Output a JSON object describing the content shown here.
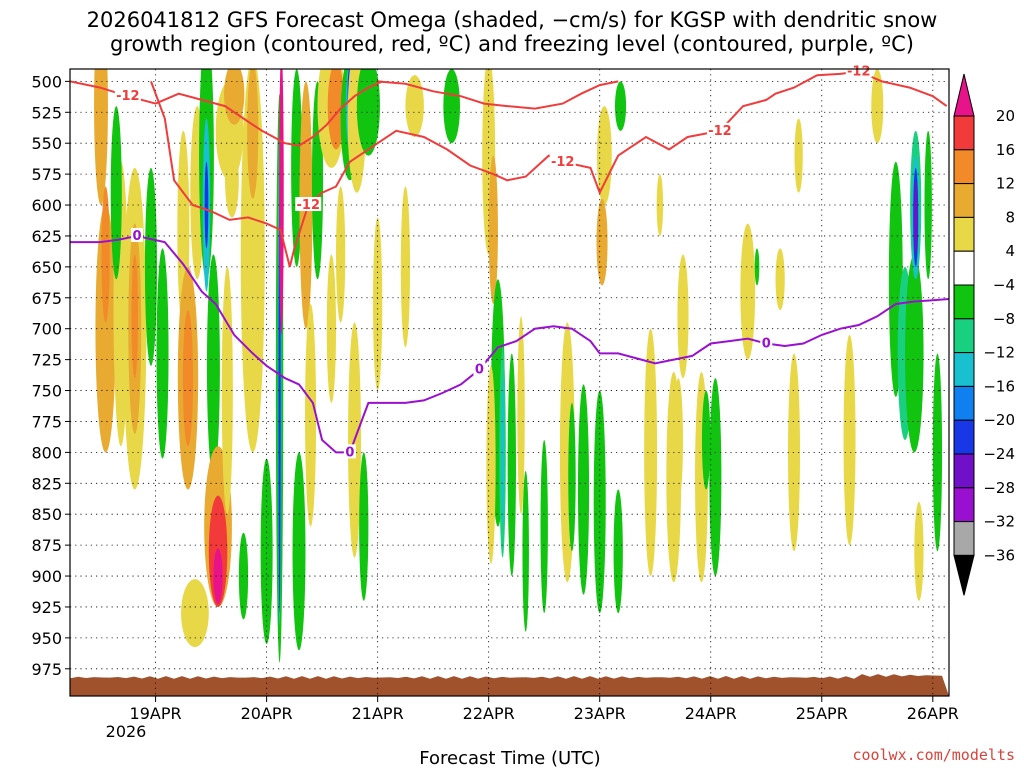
{
  "chart_data": {
    "type": "heatmap",
    "title_line1": "2026041812 GFS Forecast Omega (shaded, −cm/s) for KGSP with dendritic snow",
    "title_line2": "growth region (contoured, red, ºC) and freezing level (contoured, purple, ºC)",
    "xlabel": "Forecast Time (UTC)",
    "credit": "coolwx.com/modelts",
    "year_label": "2026",
    "x_range_hours": [
      -6.5,
      183.5
    ],
    "x_ticks": [
      {
        "label": "19APR",
        "hours": 12
      },
      {
        "label": "20APR",
        "hours": 36
      },
      {
        "label": "21APR",
        "hours": 60
      },
      {
        "label": "22APR",
        "hours": 84
      },
      {
        "label": "23APR",
        "hours": 108
      },
      {
        "label": "24APR",
        "hours": 132
      },
      {
        "label": "25APR",
        "hours": 156
      },
      {
        "label": "26APR",
        "hours": 180
      }
    ],
    "y_range_hpa": [
      490,
      997
    ],
    "y_ticks": [
      "500",
      "525",
      "550",
      "575",
      "600",
      "625",
      "650",
      "675",
      "700",
      "725",
      "750",
      "775",
      "800",
      "825",
      "850",
      "875",
      "900",
      "925",
      "950",
      "975"
    ],
    "ground_level_hpa": 982,
    "colorbar": {
      "labels": [
        "20",
        "16",
        "12",
        "8",
        "4",
        "−4",
        "−8",
        "−12",
        "−16",
        "−20",
        "−24",
        "−28",
        "−32",
        "−36"
      ],
      "colors": [
        "#e8138a",
        "#f23a3a",
        "#f28a2a",
        "#e8aa30",
        "#e8d848",
        "#ffffff",
        "#10c410",
        "#18d080",
        "#18c0d0",
        "#1080f0",
        "#1838e8",
        "#7010c8",
        "#9a10d0",
        "#a8a8a8",
        "#000000"
      ]
    },
    "omega_blobs": [
      {
        "hours": 0.2,
        "p": 520,
        "w": 1.5,
        "h": 160,
        "level": 8
      },
      {
        "hours": 1.2,
        "p": 700,
        "w": 2.2,
        "h": 200,
        "level": 8
      },
      {
        "hours": 1.2,
        "p": 640,
        "w": 0.9,
        "h": 110,
        "level": 12
      },
      {
        "hours": 4.5,
        "p": 680,
        "w": 1.6,
        "h": 230,
        "level": 4
      },
      {
        "hours": 3.5,
        "p": 590,
        "w": 1.2,
        "h": 140,
        "level": -8
      },
      {
        "hours": 7.5,
        "p": 700,
        "w": 2.5,
        "h": 260,
        "level": 4
      },
      {
        "hours": 7.5,
        "p": 700,
        "w": 1.4,
        "h": 170,
        "level": 8
      },
      {
        "hours": 7.5,
        "p": 690,
        "w": 0.7,
        "h": 100,
        "level": 12
      },
      {
        "hours": 11.0,
        "p": 650,
        "w": 1.3,
        "h": 160,
        "level": -8
      },
      {
        "hours": 13.5,
        "p": 720,
        "w": 1.3,
        "h": 170,
        "level": -8
      },
      {
        "hours": 18.0,
        "p": 620,
        "w": 1.3,
        "h": 160,
        "level": 4
      },
      {
        "hours": 19.0,
        "p": 740,
        "w": 2.2,
        "h": 180,
        "level": 8
      },
      {
        "hours": 19.0,
        "p": 740,
        "w": 1.1,
        "h": 110,
        "level": 12
      },
      {
        "hours": 21.0,
        "p": 590,
        "w": 1.5,
        "h": 140,
        "level": 4
      },
      {
        "hours": 20.5,
        "p": 930,
        "w": 3.0,
        "h": 55,
        "level": 4
      },
      {
        "hours": 23.0,
        "p": 560,
        "w": 1.6,
        "h": 200,
        "level": -8
      },
      {
        "hours": 23.0,
        "p": 600,
        "w": 0.8,
        "h": 140,
        "level": -16
      },
      {
        "hours": 23.0,
        "p": 600,
        "w": 0.4,
        "h": 70,
        "level": -24
      },
      {
        "hours": 24.5,
        "p": 730,
        "w": 1.4,
        "h": 180,
        "level": -8
      },
      {
        "hours": 25.5,
        "p": 860,
        "w": 3.0,
        "h": 130,
        "level": 8
      },
      {
        "hours": 25.5,
        "p": 880,
        "w": 2.0,
        "h": 90,
        "level": 16
      },
      {
        "hours": 25.5,
        "p": 900,
        "w": 1.0,
        "h": 45,
        "level": 20
      },
      {
        "hours": 28.0,
        "p": 540,
        "w": 3.0,
        "h": 80,
        "level": 4
      },
      {
        "hours": 29.0,
        "p": 510,
        "w": 2.2,
        "h": 50,
        "level": 8
      },
      {
        "hours": 28.5,
        "p": 580,
        "w": 1.5,
        "h": 60,
        "level": 4
      },
      {
        "hours": 27.5,
        "p": 750,
        "w": 1.2,
        "h": 200,
        "level": 4
      },
      {
        "hours": 31.0,
        "p": 900,
        "w": 1.0,
        "h": 70,
        "level": -8
      },
      {
        "hours": 33.0,
        "p": 640,
        "w": 2.6,
        "h": 320,
        "level": 4
      },
      {
        "hours": 33.0,
        "p": 540,
        "w": 1.2,
        "h": 110,
        "level": 8
      },
      {
        "hours": 36.0,
        "p": 880,
        "w": 1.3,
        "h": 150,
        "level": -8
      },
      {
        "hours": 38.8,
        "p": 740,
        "w": 0.8,
        "h": 460,
        "level": -8
      },
      {
        "hours": 38.8,
        "p": 740,
        "w": 0.4,
        "h": 400,
        "level": -16
      },
      {
        "hours": 38.8,
        "p": 760,
        "w": 0.25,
        "h": 340,
        "level": -24
      },
      {
        "hours": 39.2,
        "p": 590,
        "w": 0.5,
        "h": 230,
        "level": 20
      },
      {
        "hours": 42.5,
        "p": 570,
        "w": 1.2,
        "h": 160,
        "level": -8
      },
      {
        "hours": 44.5,
        "p": 600,
        "w": 1.4,
        "h": 200,
        "level": 8
      },
      {
        "hours": 43.0,
        "p": 880,
        "w": 1.4,
        "h": 160,
        "level": -8
      },
      {
        "hours": 45.5,
        "p": 770,
        "w": 1.2,
        "h": 180,
        "level": 4
      },
      {
        "hours": 47.0,
        "p": 580,
        "w": 1.2,
        "h": 160,
        "level": -8
      },
      {
        "hours": 50.0,
        "p": 520,
        "w": 3.0,
        "h": 100,
        "level": 4
      },
      {
        "hours": 51.0,
        "p": 520,
        "w": 1.8,
        "h": 70,
        "level": 12
      },
      {
        "hours": 50.0,
        "p": 700,
        "w": 1.0,
        "h": 120,
        "level": 4
      },
      {
        "hours": 54.0,
        "p": 530,
        "w": 2.0,
        "h": 100,
        "level": -8
      },
      {
        "hours": 54.0,
        "p": 520,
        "w": 0.9,
        "h": 70,
        "level": -16
      },
      {
        "hours": 54.0,
        "p": 510,
        "w": 0.5,
        "h": 45,
        "level": -24
      },
      {
        "hours": 55.5,
        "p": 530,
        "w": 2.0,
        "h": 120,
        "level": 4
      },
      {
        "hours": 58.0,
        "p": 520,
        "w": 2.5,
        "h": 80,
        "level": -8
      },
      {
        "hours": 52.0,
        "p": 640,
        "w": 1.0,
        "h": 110,
        "level": 4
      },
      {
        "hours": 55.0,
        "p": 790,
        "w": 1.4,
        "h": 190,
        "level": 4
      },
      {
        "hours": 57.0,
        "p": 860,
        "w": 1.0,
        "h": 120,
        "level": -8
      },
      {
        "hours": 60.0,
        "p": 680,
        "w": 1.0,
        "h": 140,
        "level": 4
      },
      {
        "hours": 66.0,
        "p": 650,
        "w": 1.0,
        "h": 130,
        "level": 4
      },
      {
        "hours": 68.0,
        "p": 520,
        "w": 2.0,
        "h": 50,
        "level": 4
      },
      {
        "hours": 76.0,
        "p": 520,
        "w": 1.8,
        "h": 60,
        "level": -8
      },
      {
        "hours": 84.0,
        "p": 560,
        "w": 1.4,
        "h": 160,
        "level": 4
      },
      {
        "hours": 85.0,
        "p": 620,
        "w": 1.0,
        "h": 120,
        "level": 8
      },
      {
        "hours": 86.0,
        "p": 760,
        "w": 1.5,
        "h": 200,
        "level": -8
      },
      {
        "hours": 87.0,
        "p": 800,
        "w": 0.7,
        "h": 170,
        "level": -12
      },
      {
        "hours": 87.0,
        "p": 800,
        "w": 0.3,
        "h": 120,
        "level": -16
      },
      {
        "hours": 84.5,
        "p": 810,
        "w": 1.0,
        "h": 160,
        "level": 4
      },
      {
        "hours": 89.0,
        "p": 810,
        "w": 0.9,
        "h": 180,
        "level": -8
      },
      {
        "hours": 91.0,
        "p": 770,
        "w": 0.8,
        "h": 160,
        "level": 4
      },
      {
        "hours": 92.0,
        "p": 880,
        "w": 0.7,
        "h": 130,
        "level": -8
      },
      {
        "hours": 96.0,
        "p": 860,
        "w": 0.8,
        "h": 140,
        "level": -8
      },
      {
        "hours": 101.0,
        "p": 800,
        "w": 1.6,
        "h": 210,
        "level": 4
      },
      {
        "hours": 102.0,
        "p": 820,
        "w": 0.8,
        "h": 120,
        "level": -8
      },
      {
        "hours": 104.5,
        "p": 830,
        "w": 1.2,
        "h": 170,
        "level": -8
      },
      {
        "hours": 108.0,
        "p": 840,
        "w": 1.3,
        "h": 180,
        "level": -8
      },
      {
        "hours": 109.0,
        "p": 560,
        "w": 1.6,
        "h": 80,
        "level": 4
      },
      {
        "hours": 108.5,
        "p": 630,
        "w": 1.2,
        "h": 70,
        "level": 8
      },
      {
        "hours": 112.0,
        "p": 880,
        "w": 1.0,
        "h": 100,
        "level": -8
      },
      {
        "hours": 112.5,
        "p": 520,
        "w": 1.2,
        "h": 40,
        "level": -8
      },
      {
        "hours": 119.0,
        "p": 800,
        "w": 1.4,
        "h": 200,
        "level": 4
      },
      {
        "hours": 121.0,
        "p": 600,
        "w": 0.7,
        "h": 50,
        "level": 4
      },
      {
        "hours": 124.0,
        "p": 820,
        "w": 1.6,
        "h": 170,
        "level": 4
      },
      {
        "hours": 125.0,
        "p": 790,
        "w": 1.0,
        "h": 100,
        "level": 4
      },
      {
        "hours": 126.0,
        "p": 690,
        "w": 1.2,
        "h": 100,
        "level": 4
      },
      {
        "hours": 130.0,
        "p": 820,
        "w": 1.4,
        "h": 170,
        "level": 4
      },
      {
        "hours": 131.0,
        "p": 790,
        "w": 0.9,
        "h": 80,
        "level": -8
      },
      {
        "hours": 133.0,
        "p": 820,
        "w": 1.3,
        "h": 160,
        "level": -8
      },
      {
        "hours": 140.0,
        "p": 670,
        "w": 1.6,
        "h": 110,
        "level": 4
      },
      {
        "hours": 142.0,
        "p": 650,
        "w": 0.5,
        "h": 30,
        "level": -8
      },
      {
        "hours": 147.0,
        "p": 660,
        "w": 1.0,
        "h": 50,
        "level": 4
      },
      {
        "hours": 150.0,
        "p": 800,
        "w": 1.3,
        "h": 160,
        "level": 4
      },
      {
        "hours": 151.0,
        "p": 560,
        "w": 0.9,
        "h": 60,
        "level": 4
      },
      {
        "hours": 162.0,
        "p": 790,
        "w": 1.3,
        "h": 170,
        "level": 4
      },
      {
        "hours": 168.0,
        "p": 520,
        "w": 1.3,
        "h": 60,
        "level": 4
      },
      {
        "hours": 172.0,
        "p": 660,
        "w": 1.5,
        "h": 190,
        "level": -8
      },
      {
        "hours": 174.0,
        "p": 720,
        "w": 1.6,
        "h": 140,
        "level": -12
      },
      {
        "hours": 176.0,
        "p": 720,
        "w": 2.0,
        "h": 160,
        "level": -8
      },
      {
        "hours": 176.3,
        "p": 600,
        "w": 1.2,
        "h": 120,
        "level": -12
      },
      {
        "hours": 176.3,
        "p": 610,
        "w": 0.8,
        "h": 100,
        "level": -16
      },
      {
        "hours": 176.3,
        "p": 610,
        "w": 0.55,
        "h": 80,
        "level": -24
      },
      {
        "hours": 176.3,
        "p": 610,
        "w": 0.4,
        "h": 60,
        "level": -28
      },
      {
        "hours": 179.0,
        "p": 600,
        "w": 0.8,
        "h": 120,
        "level": -8
      },
      {
        "hours": 181.0,
        "p": 800,
        "w": 1.0,
        "h": 160,
        "level": -8
      },
      {
        "hours": 177.0,
        "p": 880,
        "w": 1.0,
        "h": 80,
        "level": 4
      }
    ],
    "snow_growth_contours": [
      {
        "label": "-12",
        "points": [
          [
            -6.5,
            500
          ],
          [
            0,
            505
          ],
          [
            6,
            512
          ],
          [
            12,
            518
          ],
          [
            17,
            510
          ],
          [
            22,
            515
          ],
          [
            27,
            520
          ],
          [
            31,
            530
          ],
          [
            35,
            540
          ],
          [
            40,
            550
          ],
          [
            43,
            552
          ],
          [
            46,
            545
          ],
          [
            49,
            535
          ],
          [
            52,
            522
          ],
          [
            55,
            512
          ],
          [
            58,
            505
          ],
          [
            61,
            500
          ]
        ]
      },
      {
        "label": "-12",
        "points": [
          [
            11,
            500
          ],
          [
            14,
            530
          ],
          [
            16,
            580
          ],
          [
            20,
            600
          ],
          [
            24,
            605
          ],
          [
            28,
            612
          ],
          [
            32,
            610
          ],
          [
            36,
            615
          ],
          [
            39,
            620
          ],
          [
            41,
            650
          ],
          [
            42,
            635
          ],
          [
            45,
            600
          ],
          [
            48,
            590
          ],
          [
            51,
            585
          ],
          [
            54,
            565
          ],
          [
            58,
            555
          ],
          [
            64,
            540
          ],
          [
            70,
            545
          ],
          [
            75,
            555
          ],
          [
            80,
            568
          ],
          [
            85,
            575
          ],
          [
            88,
            580
          ],
          [
            92,
            577
          ],
          [
            97,
            560
          ],
          [
            100,
            565
          ],
          [
            106,
            570
          ],
          [
            108,
            590
          ],
          [
            112,
            560
          ],
          [
            118,
            545
          ],
          [
            123,
            555
          ],
          [
            127,
            545
          ],
          [
            134,
            540
          ],
          [
            139,
            520
          ],
          [
            144,
            515
          ],
          [
            146,
            510
          ],
          [
            150,
            505
          ],
          [
            155,
            495
          ],
          [
            160,
            494
          ],
          [
            164,
            492
          ],
          [
            169,
            500
          ],
          [
            175,
            505
          ],
          [
            180,
            512
          ],
          [
            183,
            520
          ]
        ]
      },
      {
        "label": "",
        "points": [
          [
            60,
            500
          ],
          [
            66,
            502
          ],
          [
            72,
            508
          ],
          [
            78,
            512
          ],
          [
            83,
            518
          ],
          [
            88,
            520
          ],
          [
            94,
            522
          ],
          [
            100,
            518
          ],
          [
            104,
            510
          ],
          [
            108,
            503
          ],
          [
            112,
            500
          ]
        ]
      }
    ],
    "freezing_level_contour": {
      "label": "0",
      "points": [
        [
          -6.5,
          630
        ],
        [
          0,
          630
        ],
        [
          4,
          628
        ],
        [
          8,
          625
        ],
        [
          14,
          630
        ],
        [
          18,
          648
        ],
        [
          22,
          670
        ],
        [
          25,
          680
        ],
        [
          29,
          705
        ],
        [
          33,
          720
        ],
        [
          36,
          730
        ],
        [
          40,
          740
        ],
        [
          43,
          745
        ],
        [
          46,
          760
        ],
        [
          48,
          790
        ],
        [
          51,
          800
        ],
        [
          54,
          800
        ],
        [
          56,
          780
        ],
        [
          58,
          760
        ],
        [
          62,
          760
        ],
        [
          66,
          760
        ],
        [
          70,
          758
        ],
        [
          74,
          752
        ],
        [
          78,
          745
        ],
        [
          82,
          733
        ],
        [
          86,
          715
        ],
        [
          90,
          710
        ],
        [
          94,
          700
        ],
        [
          98,
          698
        ],
        [
          102,
          700
        ],
        [
          106,
          710
        ],
        [
          108,
          720
        ],
        [
          112,
          720
        ],
        [
          116,
          724
        ],
        [
          120,
          728
        ],
        [
          124,
          725
        ],
        [
          128,
          722
        ],
        [
          132,
          712
        ],
        [
          136,
          710
        ],
        [
          140,
          708
        ],
        [
          144,
          712
        ],
        [
          148,
          714
        ],
        [
          152,
          712
        ],
        [
          156,
          705
        ],
        [
          160,
          700
        ],
        [
          164,
          697
        ],
        [
          168,
          690
        ],
        [
          172,
          680
        ],
        [
          176,
          678
        ],
        [
          180,
          677
        ],
        [
          183.5,
          676
        ]
      ]
    }
  }
}
